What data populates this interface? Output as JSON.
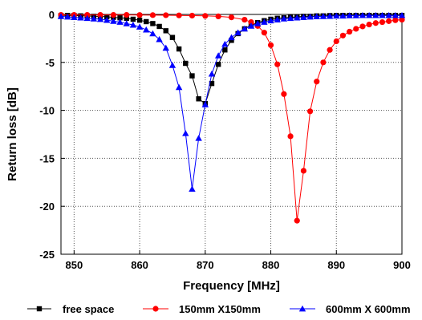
{
  "chart_data": {
    "type": "line",
    "title": "",
    "xlabel": "Frequency [MHz]",
    "ylabel": "Return loss [dB]",
    "xlim": [
      848,
      900
    ],
    "ylim": [
      -25,
      0
    ],
    "xticks": [
      "850",
      "860",
      "870",
      "880",
      "890",
      "900"
    ],
    "yticks": [
      "0",
      "-5",
      "-10",
      "-15",
      "-20",
      "-25"
    ],
    "grid": true,
    "legend_position": "bottom",
    "series": [
      {
        "name": "free space",
        "color": "#000000",
        "marker": "square",
        "x": [
          848,
          849,
          850,
          851,
          852,
          853,
          854,
          855,
          856,
          857,
          858,
          859,
          860,
          861,
          862,
          863,
          864,
          865,
          866,
          867,
          868,
          869,
          870,
          871,
          872,
          873,
          874,
          875,
          876,
          877,
          878,
          879,
          880,
          881,
          882,
          883,
          884,
          885,
          886,
          887,
          888,
          889,
          890,
          891,
          892,
          893,
          894,
          895,
          896,
          897,
          898,
          899,
          900
        ],
        "values": [
          -0.1,
          -0.1,
          -0.1,
          -0.15,
          -0.15,
          -0.2,
          -0.2,
          -0.25,
          -0.3,
          -0.35,
          -0.4,
          -0.5,
          -0.6,
          -0.75,
          -0.95,
          -1.25,
          -1.7,
          -2.4,
          -3.6,
          -5.1,
          -6.4,
          -8.8,
          -9.3,
          -7.2,
          -5.2,
          -3.7,
          -2.7,
          -2.0,
          -1.5,
          -1.1,
          -0.85,
          -0.65,
          -0.5,
          -0.4,
          -0.35,
          -0.3,
          -0.25,
          -0.2,
          -0.2,
          -0.15,
          -0.15,
          -0.12,
          -0.1,
          -0.1,
          -0.1,
          -0.1,
          -0.1,
          -0.1,
          -0.1,
          -0.1,
          -0.1,
          -0.1,
          -0.1
        ]
      },
      {
        "name": "150mm X150mm",
        "color": "#ff0000",
        "marker": "circle",
        "x": [
          848,
          850,
          852,
          854,
          856,
          858,
          860,
          862,
          864,
          866,
          868,
          870,
          872,
          874,
          876,
          877,
          878,
          879,
          880,
          881,
          882,
          883,
          884,
          885,
          886,
          887,
          888,
          889,
          890,
          891,
          892,
          893,
          894,
          895,
          896,
          897,
          898,
          899,
          900
        ],
        "values": [
          -0.05,
          -0.05,
          -0.05,
          -0.05,
          -0.05,
          -0.05,
          -0.06,
          -0.07,
          -0.08,
          -0.1,
          -0.12,
          -0.15,
          -0.2,
          -0.3,
          -0.55,
          -0.8,
          -1.2,
          -1.9,
          -3.2,
          -5.2,
          -8.3,
          -12.7,
          -21.5,
          -16.3,
          -10.1,
          -7.0,
          -5.0,
          -3.7,
          -2.8,
          -2.2,
          -1.8,
          -1.5,
          -1.25,
          -1.05,
          -0.9,
          -0.8,
          -0.7,
          -0.6,
          -0.55
        ]
      },
      {
        "name": "600mm X 600mm",
        "color": "#0000ff",
        "marker": "triangle",
        "x": [
          848,
          849,
          850,
          851,
          852,
          853,
          854,
          855,
          856,
          857,
          858,
          859,
          860,
          861,
          862,
          863,
          864,
          865,
          866,
          867,
          868,
          869,
          870,
          871,
          872,
          873,
          874,
          875,
          876,
          877,
          878,
          879,
          880,
          881,
          882,
          883,
          884,
          885,
          886,
          887,
          888,
          889,
          890,
          891,
          892,
          893,
          894,
          895,
          896,
          897,
          898,
          899,
          900
        ],
        "values": [
          -0.2,
          -0.25,
          -0.3,
          -0.35,
          -0.4,
          -0.45,
          -0.5,
          -0.6,
          -0.7,
          -0.8,
          -0.95,
          -1.1,
          -1.3,
          -1.6,
          -2.0,
          -2.6,
          -3.5,
          -5.3,
          -7.6,
          -12.4,
          -18.2,
          -12.9,
          -9.4,
          -6.2,
          -4.3,
          -3.1,
          -2.4,
          -1.9,
          -1.5,
          -1.2,
          -0.95,
          -0.8,
          -0.65,
          -0.55,
          -0.45,
          -0.4,
          -0.35,
          -0.3,
          -0.25,
          -0.22,
          -0.2,
          -0.18,
          -0.15,
          -0.15,
          -0.12,
          -0.12,
          -0.1,
          -0.1,
          -0.1,
          -0.1,
          -0.1,
          -0.1,
          -0.1
        ]
      }
    ]
  }
}
